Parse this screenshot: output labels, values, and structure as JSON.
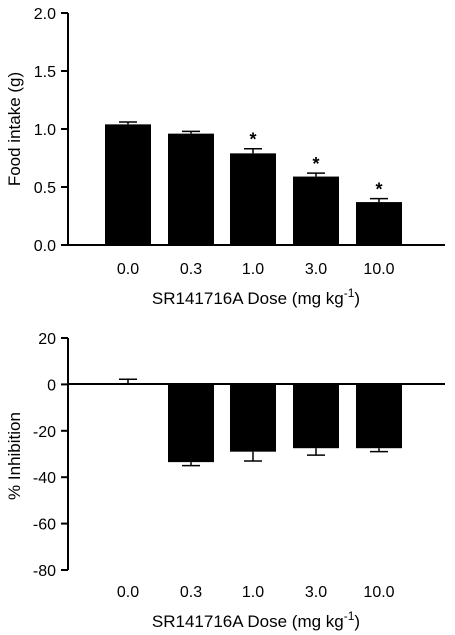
{
  "chart_data": [
    {
      "type": "bar",
      "categories": [
        "0.0",
        "0.3",
        "1.0",
        "3.0",
        "10.0"
      ],
      "values": [
        1.04,
        0.96,
        0.79,
        0.59,
        0.37
      ],
      "errors": [
        0.02,
        0.02,
        0.04,
        0.03,
        0.03
      ],
      "significance": [
        "",
        "",
        "*",
        "*",
        "*"
      ],
      "ylabel": "Food intake (g)",
      "xlabel": "SR141716A Dose (mg kg",
      "xlabel_sup": "-1",
      "xlabel_close": ")",
      "ylim": [
        0.0,
        2.0
      ],
      "yticks": [
        "0.0",
        "0.5",
        "1.0",
        "1.5",
        "2.0"
      ],
      "bar_color": "#000000"
    },
    {
      "type": "bar",
      "categories": [
        "0.0",
        "0.3",
        "1.0",
        "3.0",
        "10.0"
      ],
      "values": [
        0.2,
        -33.5,
        -29.0,
        -27.5,
        -27.5
      ],
      "errors": [
        2.0,
        1.5,
        4.0,
        3.0,
        1.5
      ],
      "ylabel": "% Inhibition",
      "xlabel": "SR141716A Dose (mg kg",
      "xlabel_sup": "-1",
      "xlabel_close": ")",
      "ylim": [
        -80,
        20
      ],
      "yticks": [
        "-80",
        "-60",
        "-40",
        "-20",
        "0",
        "20"
      ],
      "bar_color": "#000000"
    }
  ]
}
